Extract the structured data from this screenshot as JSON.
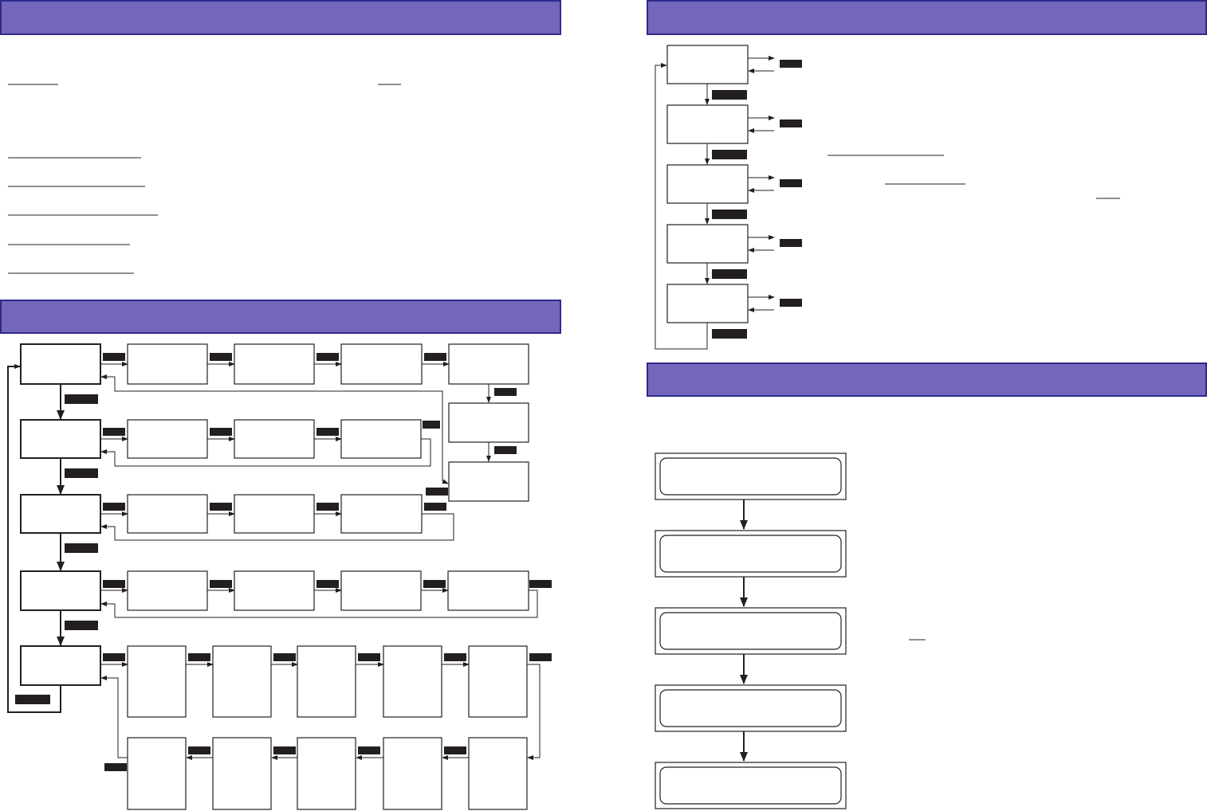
{
  "colors": {
    "header_fill": "#7466bb",
    "header_border": "#2e2a8c",
    "line": "#231f20",
    "label_fill": "#231f20"
  }
}
